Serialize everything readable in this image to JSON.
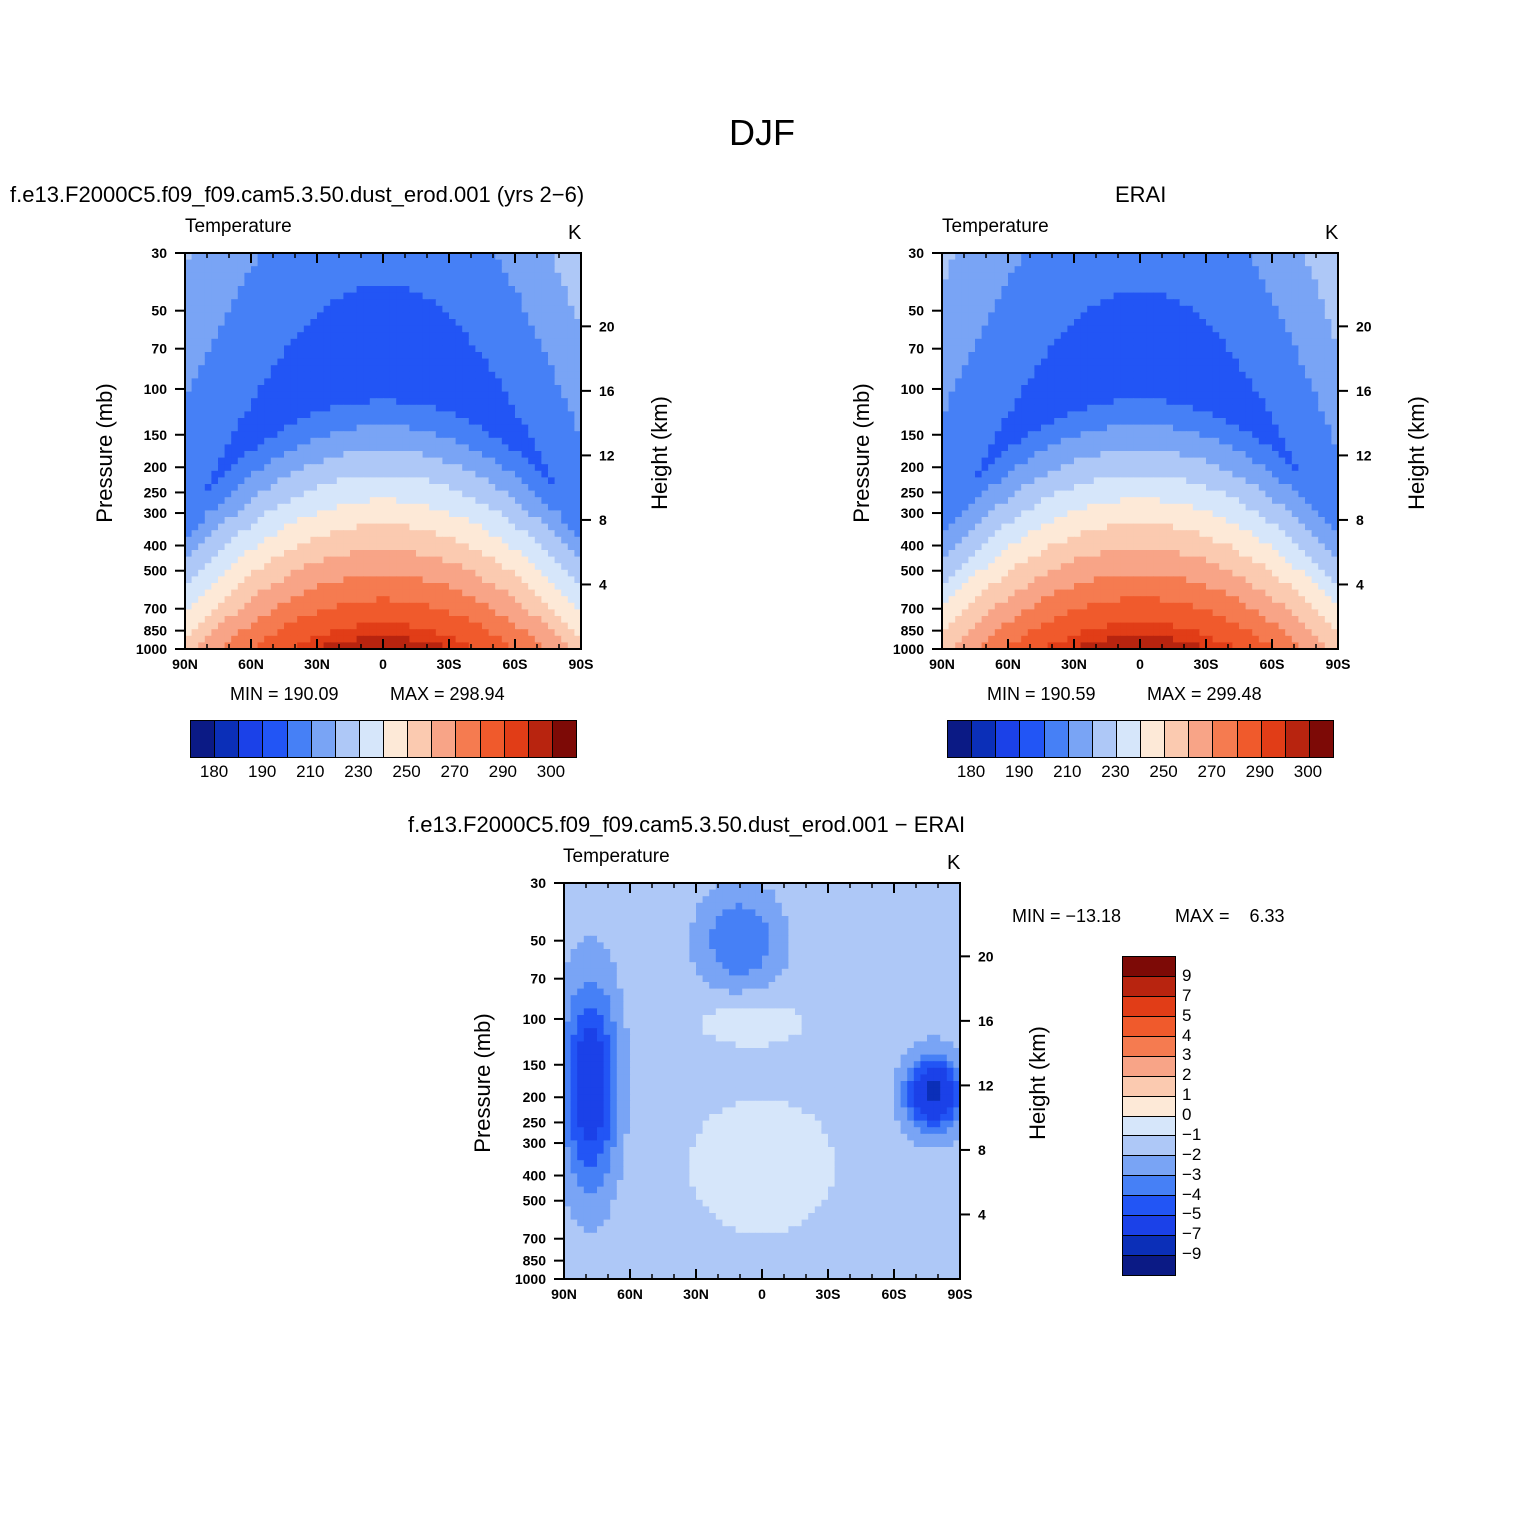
{
  "title": "DJF",
  "colors": {
    "abs_palette": [
      "#0b1a85",
      "#0b2fb8",
      "#1b41e8",
      "#2255f5",
      "#4680f6",
      "#79a4f5",
      "#aec8f7",
      "#d6e6fa",
      "#fde9d7",
      "#fbcab0",
      "#f8a487",
      "#f57b50",
      "#f05a2c",
      "#e13d17",
      "#b8240f",
      "#7d0a06"
    ],
    "diff_palette": [
      "#0b1a85",
      "#0b2fb8",
      "#1b41e8",
      "#2255f5",
      "#4680f6",
      "#79a4f5",
      "#aec8f7",
      "#d6e6fa",
      "#fde9d7",
      "#fbcab0",
      "#f8a487",
      "#f57b50",
      "#f05a2c",
      "#e13d17",
      "#b8240f",
      "#7d0a06"
    ]
  },
  "panels": [
    {
      "title": "f.e13.F2000C5.f09_f09.cam5.3.50.dust_erod.001 (yrs 2−6)",
      "subtitle": "Temperature",
      "units": "K",
      "ylabel": "Pressure (mb)",
      "y2label": "Height (km)",
      "min_label": "MIN = 190.09",
      "max_label": "MAX = 298.94",
      "colorbar_labels": [
        "180",
        "190",
        "210",
        "230",
        "250",
        "270",
        "290",
        "300"
      ]
    },
    {
      "title": "ERAI",
      "subtitle": "Temperature",
      "units": "K",
      "ylabel": "Pressure (mb)",
      "y2label": "Height (km)",
      "min_label": "MIN = 190.59",
      "max_label": "MAX = 299.48",
      "colorbar_labels": [
        "180",
        "190",
        "210",
        "230",
        "250",
        "270",
        "290",
        "300"
      ]
    },
    {
      "title": "f.e13.F2000C5.f09_f09.cam5.3.50.dust_erod.001 − ERAI",
      "subtitle": "Temperature",
      "units": "K",
      "ylabel": "Pressure (mb)",
      "y2label": "Height (km)",
      "min_label": "MIN = −13.18",
      "max_label": "MAX =    6.33",
      "colorbar_labels": [
        "9",
        "7",
        "5",
        "4",
        "3",
        "2",
        "1",
        "0",
        "−1",
        "−2",
        "−3",
        "−4",
        "−5",
        "−7",
        "−9"
      ]
    }
  ],
  "chart_data": [
    {
      "type": "heatmap",
      "title": "f.e13.F2000C5.f09_f09.cam5.3.50.dust_erod.001 (yrs 2−6)",
      "subtitle": "Temperature",
      "units": "K",
      "xlabel": "",
      "ylabel": "Pressure (mb)",
      "y2label": "Height (km)",
      "x_ticks": [
        "90N",
        "60N",
        "30N",
        "0",
        "30S",
        "60S",
        "90S"
      ],
      "x_values": [
        90,
        60,
        30,
        0,
        -30,
        -60,
        -90
      ],
      "y_ticks": [
        30,
        50,
        70,
        100,
        150,
        200,
        250,
        300,
        400,
        500,
        700,
        850,
        1000
      ],
      "y_lim": [
        1000,
        30
      ],
      "y_scale": "log",
      "y2_ticks": [
        4,
        8,
        12,
        16,
        20
      ],
      "levels": [
        180,
        185,
        190,
        200,
        210,
        220,
        230,
        240,
        250,
        260,
        270,
        280,
        290,
        295,
        300
      ],
      "min": 190.09,
      "max": 298.94
    },
    {
      "type": "heatmap",
      "title": "ERAI",
      "subtitle": "Temperature",
      "units": "K",
      "xlabel": "",
      "ylabel": "Pressure (mb)",
      "y2label": "Height (km)",
      "x_ticks": [
        "90N",
        "60N",
        "30N",
        "0",
        "30S",
        "60S",
        "90S"
      ],
      "x_values": [
        90,
        60,
        30,
        0,
        -30,
        -60,
        -90
      ],
      "y_ticks": [
        30,
        50,
        70,
        100,
        150,
        200,
        250,
        300,
        400,
        500,
        700,
        850,
        1000
      ],
      "y_lim": [
        1000,
        30
      ],
      "y_scale": "log",
      "y2_ticks": [
        4,
        8,
        12,
        16,
        20
      ],
      "levels": [
        180,
        185,
        190,
        200,
        210,
        220,
        230,
        240,
        250,
        260,
        270,
        280,
        290,
        295,
        300
      ],
      "min": 190.59,
      "max": 299.48
    },
    {
      "type": "heatmap",
      "title": "f.e13.F2000C5.f09_f09.cam5.3.50.dust_erod.001 − ERAI",
      "subtitle": "Temperature",
      "units": "K",
      "xlabel": "",
      "ylabel": "Pressure (mb)",
      "y2label": "Height (km)",
      "x_ticks": [
        "90N",
        "60N",
        "30N",
        "0",
        "30S",
        "60S",
        "90S"
      ],
      "x_values": [
        90,
        60,
        30,
        0,
        -30,
        -60,
        -90
      ],
      "y_ticks": [
        30,
        50,
        70,
        100,
        150,
        200,
        250,
        300,
        400,
        500,
        700,
        850,
        1000
      ],
      "y_lim": [
        1000,
        30
      ],
      "y_scale": "log",
      "y2_ticks": [
        4,
        8,
        12,
        16,
        20
      ],
      "levels": [
        -9,
        -7,
        -5,
        -4,
        -3,
        -2,
        -1,
        0,
        1,
        2,
        3,
        4,
        5,
        7,
        9
      ],
      "min": -13.18,
      "max": 6.33
    }
  ]
}
